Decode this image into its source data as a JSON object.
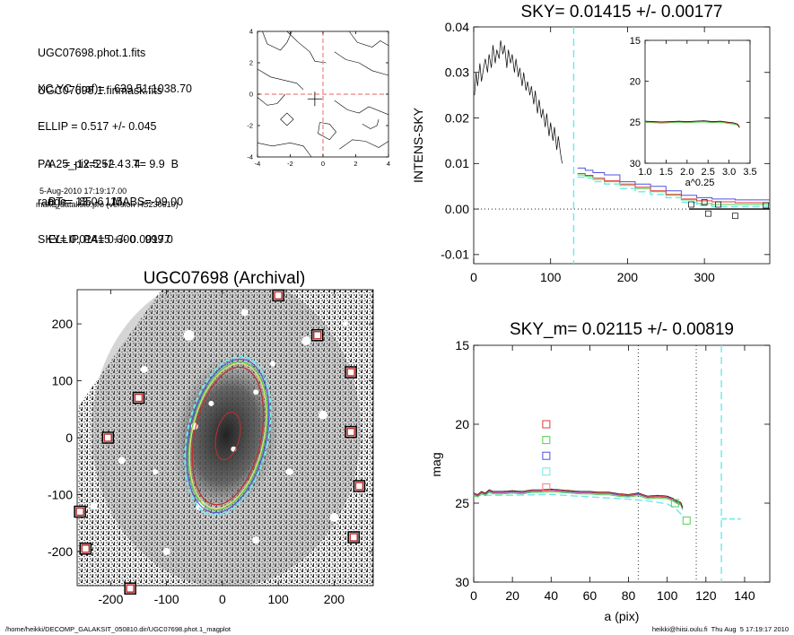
{
  "info_block": {
    "lines_a": [
      "UGC07698.phot.1.fits",
      "UGC07698.1.finmask.fits"
    ],
    "lines_b": [
      "XC,YC (iraf)=   639.51,1038.70",
      "ELLIP = 0.517 +/- 0.045",
      "PA    = -12.5 +/-   3.4",
      "range=  85.-  115.",
      "SKY= 0.01415 +/- 0.00177"
    ],
    "lines_c": [
      "A25_pix=252.4   T= 9.9  B",
      "BT=  13.06   MABS=-99.00",
      "ELLIP, PA= 0.300   999.0"
    ],
    "date": "5-Aug-2010 17:19:17.00",
    "program": "make_datalist0.pro (version HS230610)"
  },
  "footer": {
    "left": "/home/heikki/DECOMP_GALAKSIT_050810.dir/UGC07698.phot.1_magplot",
    "right": "heikki@hiisi.oulu.fi  Thu Aug  5 17:19:17 2010"
  },
  "colors": {
    "red": "#e03c3c",
    "green": "#52d152",
    "blue": "#5050e0",
    "cyan": "#6fe8e8",
    "pink": "#f08080",
    "black": "#000000"
  },
  "chart_data": [
    {
      "id": "contour",
      "type": "contour",
      "title": "",
      "xlim": [
        -4,
        4
      ],
      "ylim": [
        -4,
        4
      ],
      "x_ticks": [
        "-4",
        "-2",
        "0",
        "2",
        "4"
      ],
      "y_ticks": [
        "-4",
        "-2",
        "0",
        "2",
        "4"
      ],
      "center_marker": [
        -0.5,
        -0.3
      ],
      "crosshair": [
        0,
        0
      ]
    },
    {
      "id": "sky_profile",
      "type": "line",
      "title": "SKY= 0.01415 +/- 0.00177",
      "xlabel": "",
      "ylabel": "INTENS-SKY",
      "xlim": [
        0,
        385
      ],
      "ylim": [
        -0.012,
        0.04
      ],
      "x_ticks": [
        "0",
        "100",
        "200",
        "300"
      ],
      "y_ticks": [
        "-0.01",
        "0.00",
        "0.01",
        "0.02",
        "0.03",
        "0.04"
      ],
      "inner_profile": {
        "x": [
          1,
          3,
          5,
          8,
          10,
          13,
          15,
          18,
          20,
          23,
          25,
          28,
          30,
          33,
          35,
          38,
          40,
          43,
          45,
          48,
          50,
          53,
          55,
          58,
          60,
          63,
          65,
          68,
          70,
          73,
          75,
          78,
          80,
          83,
          85,
          88,
          90,
          93,
          95,
          98,
          100,
          103,
          105,
          108,
          110,
          113,
          115
        ],
        "y": [
          0.025,
          0.03,
          0.027,
          0.032,
          0.028,
          0.031,
          0.033,
          0.03,
          0.034,
          0.031,
          0.036,
          0.032,
          0.035,
          0.033,
          0.037,
          0.034,
          0.036,
          0.031,
          0.035,
          0.032,
          0.034,
          0.03,
          0.033,
          0.029,
          0.031,
          0.027,
          0.03,
          0.026,
          0.028,
          0.025,
          0.027,
          0.023,
          0.026,
          0.021,
          0.024,
          0.02,
          0.022,
          0.018,
          0.021,
          0.016,
          0.019,
          0.015,
          0.018,
          0.013,
          0.016,
          0.012,
          0.01
        ]
      },
      "outer_series": [
        {
          "color": "blue",
          "x": [
            135,
            145,
            155,
            170,
            190,
            210,
            230,
            250,
            270,
            290,
            310,
            340,
            385
          ],
          "y": [
            0.009,
            0.0085,
            0.008,
            0.0075,
            0.006,
            0.0055,
            0.005,
            0.004,
            0.003,
            0.0025,
            0.0022,
            0.002,
            0.002
          ]
        },
        {
          "color": "green",
          "x": [
            135,
            145,
            155,
            170,
            190,
            210,
            230,
            250,
            270,
            290,
            310,
            340,
            385
          ],
          "y": [
            0.0075,
            0.0072,
            0.0065,
            0.006,
            0.0052,
            0.0045,
            0.0038,
            0.003,
            0.002,
            0.0012,
            0.001,
            0.001,
            0.001
          ]
        },
        {
          "color": "red",
          "x": [
            135,
            145,
            155,
            170,
            190,
            210,
            230,
            250,
            270,
            290,
            310,
            340,
            385
          ],
          "y": [
            0.0078,
            0.0074,
            0.0068,
            0.0062,
            0.0055,
            0.0048,
            0.004,
            0.0032,
            0.0022,
            0.0018,
            0.0016,
            0.0014,
            0.0014
          ]
        },
        {
          "color": "cyan",
          "x": [
            135,
            145,
            155,
            170,
            190,
            210,
            230,
            250,
            270,
            290,
            310,
            340,
            385
          ],
          "y": [
            0.007,
            0.0068,
            0.006,
            0.0055,
            0.0045,
            0.0038,
            0.0032,
            0.0025,
            0.0015,
            0.0008,
            0.0005,
            0.0005,
            0.0005
          ]
        }
      ],
      "squares": {
        "x": [
          283,
          305,
          318,
          340,
          380,
          300
        ],
        "y": [
          0.001,
          -0.001,
          0.001,
          -0.0015,
          0.0008,
          0.0015
        ]
      },
      "sky_vline_x": 130,
      "zero_line_from_x": 280,
      "inset": {
        "xlabel": "a^0.25",
        "xlim": [
          1.0,
          3.5
        ],
        "ylim": [
          30,
          15
        ],
        "x_ticks": [
          "1.0",
          "1.5",
          "2.0",
          "2.5",
          "3.0",
          "3.5"
        ],
        "y_ticks": [
          "15",
          "20",
          "25",
          "30"
        ],
        "series_x": [
          1.0,
          1.2,
          1.4,
          1.6,
          1.8,
          2.0,
          2.2,
          2.4,
          2.6,
          2.8,
          3.0,
          3.1,
          3.2,
          3.25
        ],
        "series_y": [
          24.9,
          24.95,
          25.0,
          24.95,
          24.9,
          24.95,
          24.9,
          24.85,
          24.95,
          24.9,
          25.05,
          25.1,
          25.25,
          25.6
        ]
      }
    },
    {
      "id": "image",
      "type": "image",
      "title": "UGC07698 (Archival)",
      "xlim": [
        -260,
        270
      ],
      "ylim": [
        -260,
        260
      ],
      "x_ticks": [
        "-200",
        "-100",
        "0",
        "100",
        "200"
      ],
      "y_ticks": [
        "-200",
        "-100",
        "0",
        "100",
        "200"
      ],
      "ellipse_center": [
        5,
        5
      ],
      "mask_squares": {
        "x": [
          100,
          170,
          230,
          -150,
          -205,
          230,
          245,
          -255,
          -245,
          -165,
          235
        ],
        "y": [
          250,
          180,
          115,
          70,
          0,
          10,
          -85,
          -130,
          -195,
          -265,
          -175
        ]
      }
    },
    {
      "id": "magnitude",
      "type": "line",
      "title": "SKY_m=  0.02115 +/- 0.00819",
      "xlabel": "a (pix)",
      "ylabel": "mag",
      "xlim": [
        0,
        153
      ],
      "ylim": [
        30,
        15
      ],
      "x_ticks": [
        "0",
        "20",
        "40",
        "60",
        "80",
        "100",
        "120",
        "140"
      ],
      "y_ticks": [
        "15",
        "20",
        "25",
        "30"
      ],
      "series_x": [
        0,
        2,
        4,
        6,
        8,
        10,
        15,
        20,
        25,
        30,
        35,
        40,
        45,
        50,
        55,
        60,
        65,
        70,
        75,
        80,
        85,
        90,
        95,
        100,
        103,
        105,
        107,
        108
      ],
      "series_y": [
        24.4,
        24.5,
        24.3,
        24.4,
        24.2,
        24.3,
        24.3,
        24.25,
        24.3,
        24.2,
        24.2,
        24.15,
        24.2,
        24.25,
        24.3,
        24.3,
        24.35,
        24.35,
        24.45,
        24.5,
        24.4,
        24.6,
        24.55,
        24.6,
        24.75,
        24.9,
        25.0,
        25.3
      ],
      "cyan_dash_x": [
        0,
        20,
        40,
        60,
        80,
        90,
        100,
        104,
        108
      ],
      "cyan_dash_y": [
        24.5,
        24.5,
        24.45,
        24.6,
        24.75,
        24.85,
        25.05,
        25.3,
        25.8
      ],
      "legend_squares_y": [
        20.0,
        21.0,
        22.0,
        23.0,
        24.0
      ],
      "end_squares": [
        {
          "color": "green",
          "x": 104,
          "y": 25.0
        },
        {
          "color": "green",
          "x": 110,
          "y": 26.1
        }
      ],
      "vlines_dotted": [
        85,
        115
      ],
      "vline_cyan": 128,
      "sky_mark": {
        "x1": 128,
        "x2": 138,
        "y": 26.0
      }
    }
  ]
}
